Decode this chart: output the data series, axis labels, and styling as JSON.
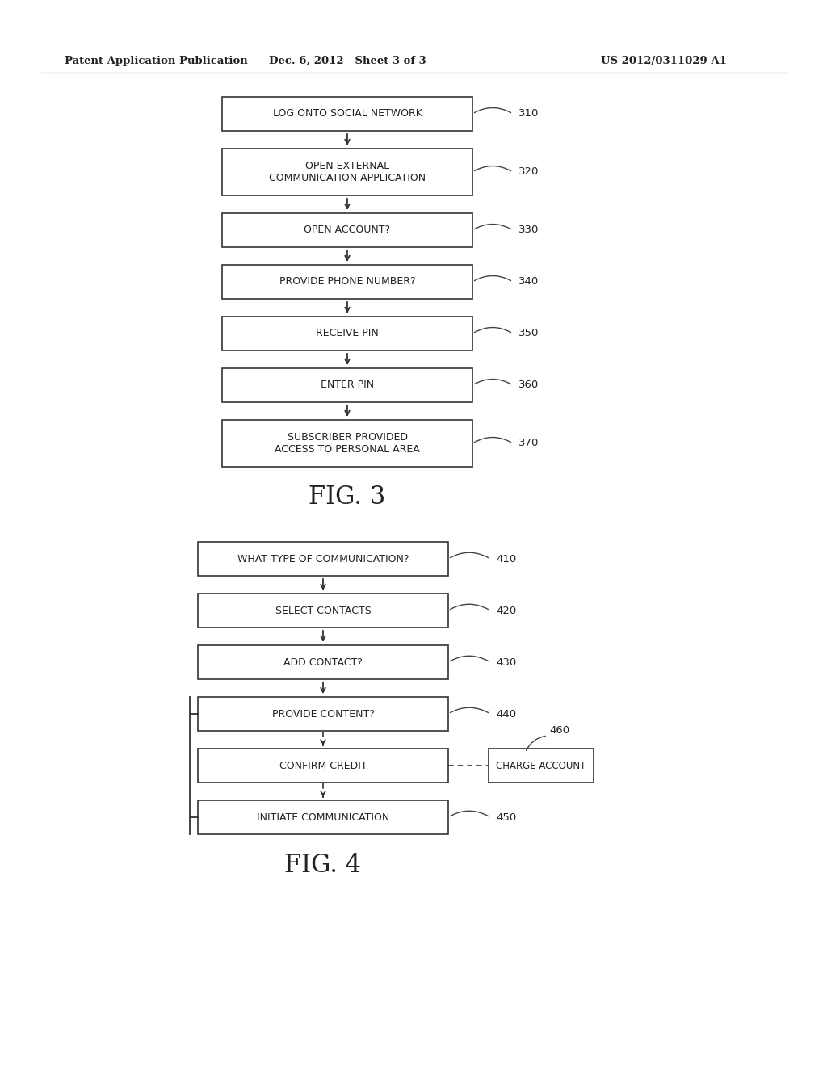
{
  "bg_color": "#ffffff",
  "header_left": "Patent Application Publication",
  "header_center": "Dec. 6, 2012   Sheet 3 of 3",
  "header_right": "US 2012/0311029 A1",
  "fig3_title": "FIG. 3",
  "fig4_title": "FIG. 4",
  "fig3_boxes": [
    {
      "label": "LOG ONTO SOCIAL NETWORK",
      "ref": "310",
      "multiline": false
    },
    {
      "label": "OPEN EXTERNAL\nCOMMUNICATION APPLICATION",
      "ref": "320",
      "multiline": true
    },
    {
      "label": "OPEN ACCOUNT?",
      "ref": "330",
      "multiline": false
    },
    {
      "label": "PROVIDE PHONE NUMBER?",
      "ref": "340",
      "multiline": false
    },
    {
      "label": "RECEIVE PIN",
      "ref": "350",
      "multiline": false
    },
    {
      "label": "ENTER PIN",
      "ref": "360",
      "multiline": false
    },
    {
      "label": "SUBSCRIBER PROVIDED\nACCESS TO PERSONAL AREA",
      "ref": "370",
      "multiline": true
    }
  ],
  "fig4_boxes": [
    {
      "label": "WHAT TYPE OF COMMUNICATION?",
      "ref": "410",
      "multiline": false
    },
    {
      "label": "SELECT CONTACTS",
      "ref": "420",
      "multiline": false
    },
    {
      "label": "ADD CONTACT?",
      "ref": "430",
      "multiline": false
    },
    {
      "label": "PROVIDE CONTENT?",
      "ref": "440",
      "multiline": false
    },
    {
      "label": "CONFIRM CREDIT",
      "ref": "",
      "multiline": false,
      "dashed_above": true
    },
    {
      "label": "INITIATE COMMUNICATION",
      "ref": "450",
      "multiline": false,
      "dashed_above": true
    }
  ],
  "fig4_charge_box": {
    "label": "CHARGE ACCOUNT",
    "ref": "460"
  }
}
